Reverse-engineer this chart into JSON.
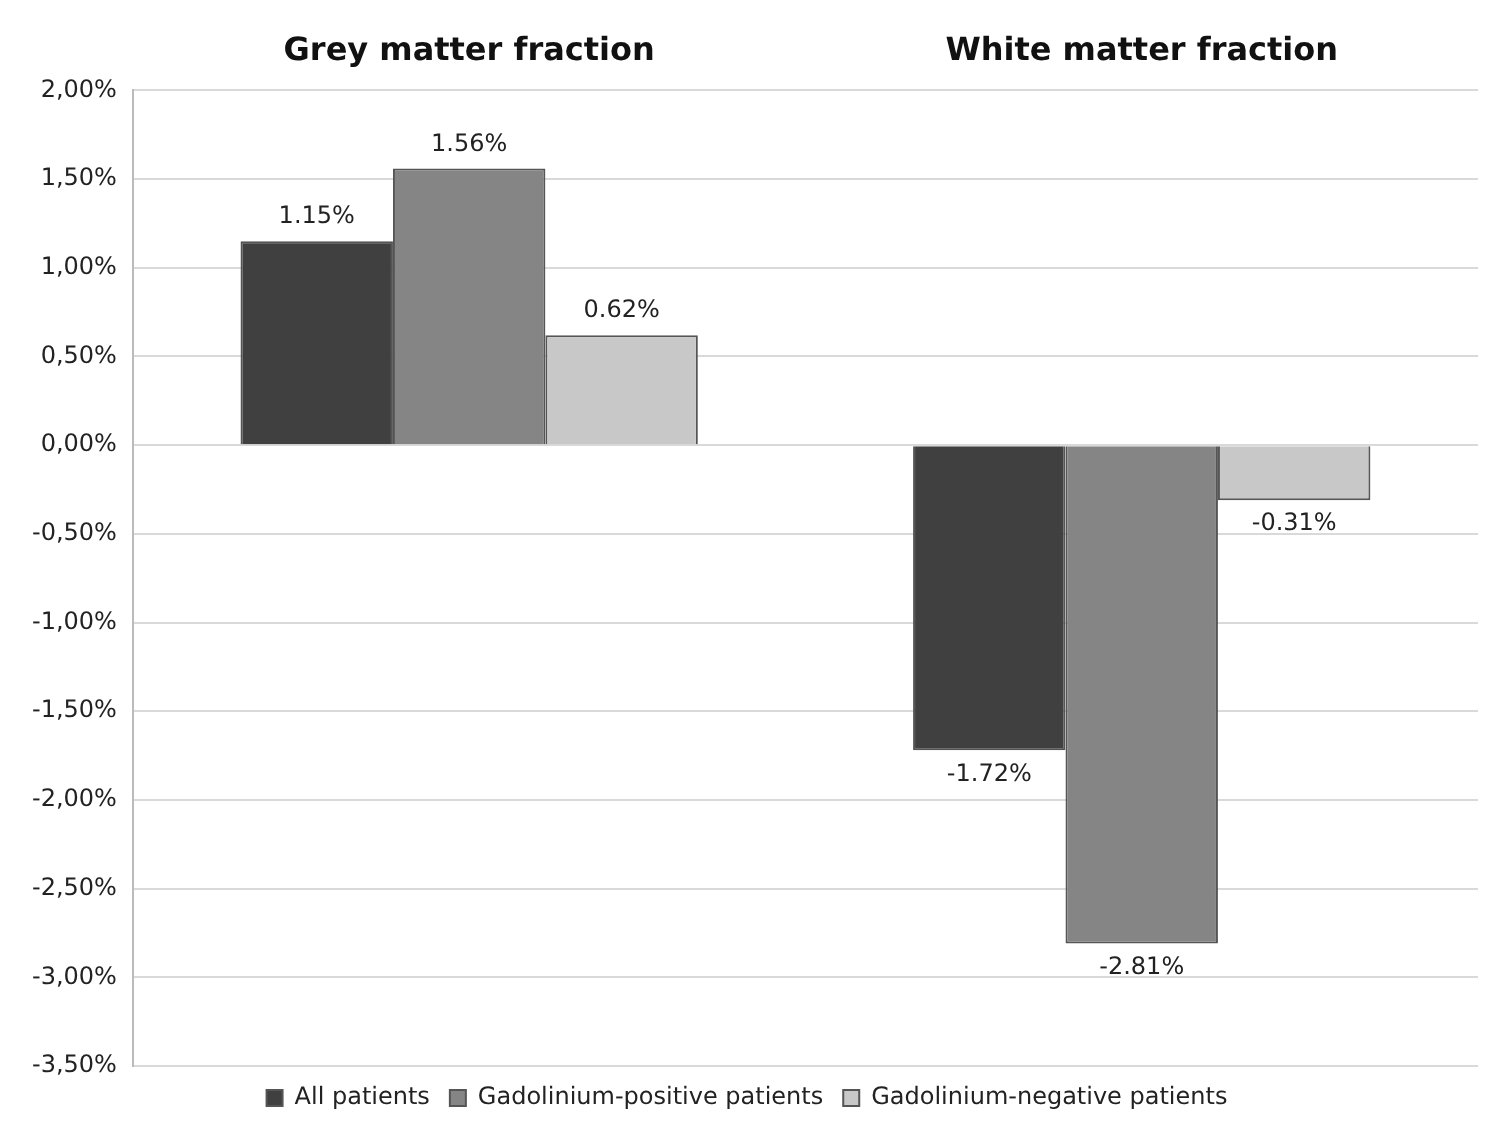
{
  "chart_data": {
    "type": "bar",
    "categories": [
      "Grey matter fraction",
      "White matter fraction"
    ],
    "series": [
      {
        "name": "All patients",
        "color": "#404040",
        "values": [
          1.15,
          -1.72
        ],
        "value_labels": [
          "1.15%",
          "-1.72%"
        ]
      },
      {
        "name": "Gadolinium-positive patients",
        "color": "#858585",
        "values": [
          1.56,
          -2.81
        ],
        "value_labels": [
          "1.56%",
          "-2.81%"
        ]
      },
      {
        "name": "Gadolinium-negative patients",
        "color": "#c8c8c8",
        "values": [
          0.62,
          -0.31
        ],
        "value_labels": [
          "0.62%",
          "-0.31%"
        ]
      }
    ],
    "ylim": [
      -3.5,
      2
    ],
    "yticks": [
      {
        "value": 2,
        "label": "2,00%"
      },
      {
        "value": 1.5,
        "label": "1,50%"
      },
      {
        "value": 1,
        "label": "1,00%"
      },
      {
        "value": 0.5,
        "label": "0,50%"
      },
      {
        "value": 0,
        "label": "0,00%"
      },
      {
        "value": -0.5,
        "label": "-0,50%"
      },
      {
        "value": -1,
        "label": "-1,00%"
      },
      {
        "value": -1.5,
        "label": "-1,50%"
      },
      {
        "value": -2,
        "label": "-2,00%"
      },
      {
        "value": -2.5,
        "label": "-2,50%"
      },
      {
        "value": -3,
        "label": "-3,00%"
      },
      {
        "value": -3.5,
        "label": "-3,50%"
      }
    ],
    "grid": "y",
    "legend": "bottom"
  }
}
